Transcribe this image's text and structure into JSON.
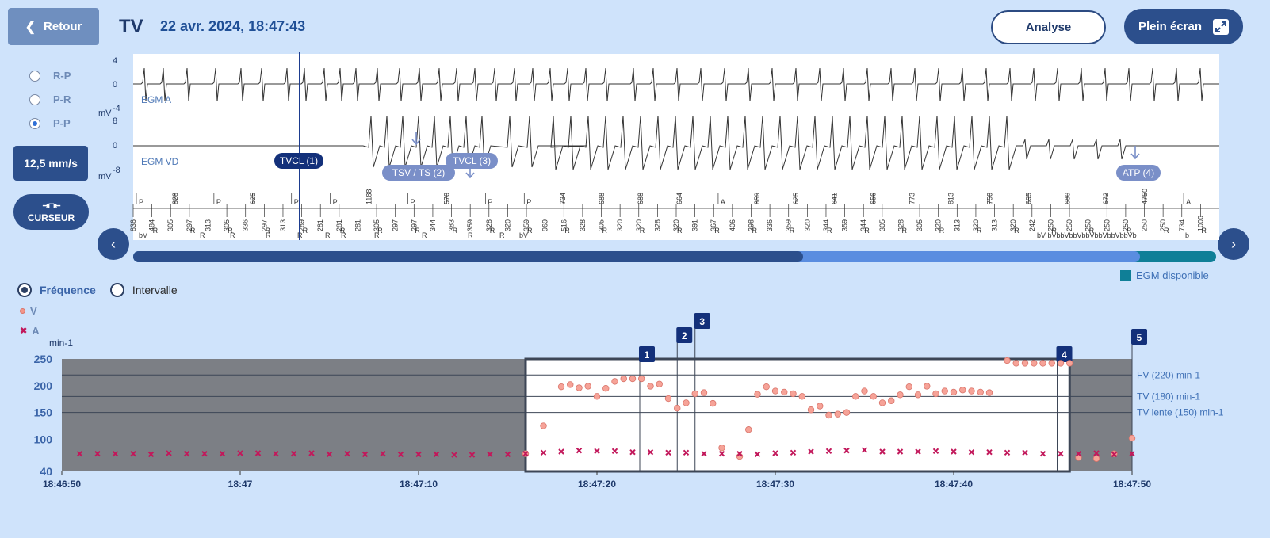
{
  "header": {
    "back_label": "Retour",
    "title": "TV",
    "datetime": "22 avr. 2024, 18:47:43",
    "analyse_label": "Analyse",
    "fullscreen_label": "Plein écran"
  },
  "left_panel": {
    "radios": [
      {
        "label": "R-P",
        "checked": false
      },
      {
        "label": "P-R",
        "checked": false
      },
      {
        "label": "P-P",
        "checked": true
      }
    ],
    "speed_label": "12,5 mm/s",
    "cursor_label": "CURSEUR"
  },
  "egm": {
    "unit": "mV",
    "channel_a": {
      "label": "EGM A",
      "ticks": [
        "4",
        "0",
        "-4"
      ]
    },
    "channel_vd": {
      "label": "EGM VD",
      "ticks": [
        "8",
        "0",
        "-8"
      ]
    },
    "annotations": [
      {
        "label": "TVCL (1)",
        "active": true
      },
      {
        "label": "TSV / TS (2)",
        "active": false
      },
      {
        "label": "TVCL (3)",
        "active": false
      },
      {
        "label": "ATP (4)",
        "active": false
      }
    ],
    "marker_intervals_top": [
      "P",
      "828",
      "P",
      "625",
      "P",
      "P",
      "1188",
      "P",
      "570",
      "P",
      "P",
      "734",
      "688",
      "688",
      "664",
      "A",
      "859",
      "625",
      "641",
      "656",
      "773",
      "813",
      "750",
      "695",
      "680",
      "672",
      "4750",
      "A"
    ],
    "marker_intervals_bottom": [
      "836",
      "484",
      "305",
      "297",
      "313",
      "305",
      "336",
      "297",
      "313",
      "289",
      "281",
      "281",
      "281",
      "305",
      "297",
      "297",
      "344",
      "383",
      "359",
      "328",
      "320",
      "359",
      "969",
      "516",
      "328",
      "305",
      "320",
      "320",
      "328",
      "320",
      "391",
      "367",
      "406",
      "398",
      "336",
      "359",
      "320",
      "344",
      "359",
      "344",
      "305",
      "328",
      "305",
      "320",
      "313",
      "320",
      "313",
      "320",
      "242",
      "250",
      "250",
      "250",
      "250",
      "250",
      "250",
      "250",
      "734",
      "1000"
    ],
    "marker_labels_bottom": [
      "bV",
      "R",
      "R",
      "R",
      "R",
      "R",
      "R",
      "R",
      "R",
      "R",
      "R",
      "bV",
      "bV bVbbVbbVbbVbbVbbVbbVb",
      "b"
    ]
  },
  "episode_bar": {
    "legend": "EGM disponible"
  },
  "trend": {
    "mode_options": [
      {
        "label": "Fréquence",
        "selected": true
      },
      {
        "label": "Intervalle",
        "selected": false
      }
    ],
    "legend": [
      {
        "symbol": "circle",
        "label": "V",
        "color": "#f3968a"
      },
      {
        "symbol": "x",
        "label": "A",
        "color": "#c2185b"
      }
    ],
    "y_unit": "min-1",
    "zones": [
      {
        "label": "FV (220) min-1",
        "value": 220
      },
      {
        "label": "TV (180) min-1",
        "value": 180
      },
      {
        "label": "TV lente (150) min-1",
        "value": 150
      }
    ],
    "markers": [
      "1",
      "2",
      "3",
      "4",
      "5"
    ]
  },
  "chart_data": {
    "type": "scatter",
    "ylabel": "min-1",
    "ylim": [
      40,
      250
    ],
    "yticks": [
      40,
      100,
      150,
      200,
      250
    ],
    "xticks": [
      "18:46:50",
      "18:47",
      "18:47:10",
      "18:47:20",
      "18:47:30",
      "18:47:40",
      "18:47:50"
    ],
    "x_unit": "seconds after 18:46:50",
    "series": [
      {
        "name": "V",
        "marker": "circle",
        "points": [
          [
            26,
            73
          ],
          [
            27,
            125
          ],
          [
            28,
            198
          ],
          [
            28.5,
            202
          ],
          [
            29,
            196
          ],
          [
            29.5,
            199
          ],
          [
            30,
            180
          ],
          [
            30.5,
            195
          ],
          [
            31,
            208
          ],
          [
            31.5,
            213
          ],
          [
            32,
            213
          ],
          [
            32.5,
            213
          ],
          [
            33,
            199
          ],
          [
            33.5,
            203
          ],
          [
            34,
            176
          ],
          [
            34.5,
            158
          ],
          [
            35,
            168
          ],
          [
            35.5,
            185
          ],
          [
            36,
            187
          ],
          [
            36.5,
            167
          ],
          [
            37,
            84
          ],
          [
            38,
            68
          ],
          [
            38.5,
            118
          ],
          [
            39,
            184
          ],
          [
            39.5,
            198
          ],
          [
            40,
            190
          ],
          [
            40.5,
            188
          ],
          [
            41,
            185
          ],
          [
            41.5,
            180
          ],
          [
            42,
            155
          ],
          [
            42.5,
            162
          ],
          [
            43,
            145
          ],
          [
            43.5,
            147
          ],
          [
            44,
            150
          ],
          [
            44.5,
            180
          ],
          [
            45,
            190
          ],
          [
            45.5,
            180
          ],
          [
            46,
            168
          ],
          [
            46.5,
            172
          ],
          [
            47,
            183
          ],
          [
            47.5,
            198
          ],
          [
            48,
            183
          ],
          [
            48.5,
            199
          ],
          [
            49,
            185
          ],
          [
            49.5,
            190
          ],
          [
            50,
            188
          ],
          [
            50.5,
            192
          ],
          [
            51,
            190
          ],
          [
            51.5,
            188
          ],
          [
            52,
            187
          ],
          [
            53,
            247
          ],
          [
            53.5,
            242
          ],
          [
            54,
            242
          ],
          [
            54.5,
            242
          ],
          [
            55,
            242
          ],
          [
            55.5,
            242
          ],
          [
            56,
            242
          ],
          [
            56.5,
            242
          ],
          [
            57,
            66
          ],
          [
            58,
            64
          ],
          [
            59,
            73
          ],
          [
            60,
            102
          ]
        ]
      },
      {
        "name": "A",
        "marker": "x",
        "points": [
          [
            1,
            73
          ],
          [
            2,
            73
          ],
          [
            3,
            73
          ],
          [
            4,
            73
          ],
          [
            5,
            72
          ],
          [
            6,
            74
          ],
          [
            7,
            73
          ],
          [
            8,
            73
          ],
          [
            9,
            73
          ],
          [
            10,
            74
          ],
          [
            11,
            74
          ],
          [
            12,
            73
          ],
          [
            13,
            73
          ],
          [
            14,
            74
          ],
          [
            15,
            72
          ],
          [
            16,
            73
          ],
          [
            17,
            72
          ],
          [
            18,
            73
          ],
          [
            19,
            72
          ],
          [
            20,
            72
          ],
          [
            21,
            72
          ],
          [
            22,
            71
          ],
          [
            23,
            71
          ],
          [
            24,
            72
          ],
          [
            25,
            72
          ],
          [
            26,
            73
          ],
          [
            27,
            75
          ],
          [
            28,
            77
          ],
          [
            29,
            79
          ],
          [
            30,
            78
          ],
          [
            31,
            78
          ],
          [
            32,
            76
          ],
          [
            33,
            76
          ],
          [
            34,
            75
          ],
          [
            35,
            75
          ],
          [
            36,
            73
          ],
          [
            37,
            73
          ],
          [
            38,
            73
          ],
          [
            39,
            72
          ],
          [
            40,
            74
          ],
          [
            41,
            75
          ],
          [
            42,
            77
          ],
          [
            43,
            78
          ],
          [
            44,
            79
          ],
          [
            45,
            80
          ],
          [
            46,
            77
          ],
          [
            47,
            77
          ],
          [
            48,
            77
          ],
          [
            49,
            78
          ],
          [
            50,
            77
          ],
          [
            51,
            76
          ],
          [
            52,
            76
          ],
          [
            53,
            75
          ],
          [
            54,
            75
          ],
          [
            55,
            73
          ],
          [
            56,
            73
          ],
          [
            57,
            73
          ],
          [
            58,
            74
          ],
          [
            59,
            72
          ],
          [
            60,
            73
          ]
        ]
      }
    ]
  }
}
